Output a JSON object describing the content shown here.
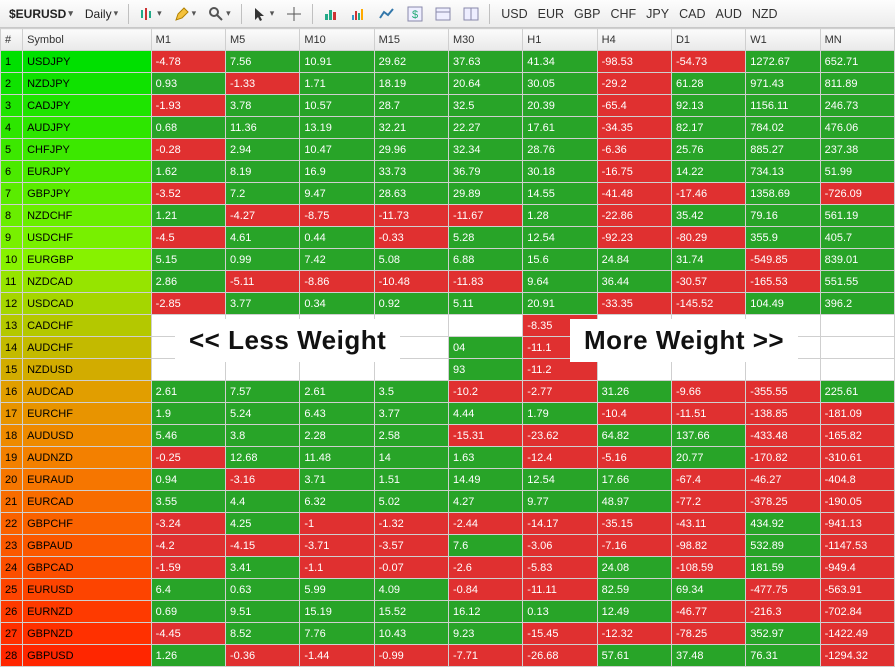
{
  "toolbar": {
    "symbol": "$EURUSD",
    "timeframe": "Daily",
    "currencies": [
      "USD",
      "EUR",
      "GBP",
      "CHF",
      "JPY",
      "CAD",
      "AUD",
      "NZD"
    ]
  },
  "overlay": {
    "less": "<< Less Weight",
    "more": "More Weight >>"
  },
  "headers": [
    "#",
    "Symbol",
    "M1",
    "M5",
    "M10",
    "M15",
    "M30",
    "H1",
    "H4",
    "D1",
    "W1",
    "MN"
  ],
  "idx_gradient": [
    "#00e000",
    "#0fe200",
    "#1ee400",
    "#2de600",
    "#3ce800",
    "#4bea00",
    "#5aec00",
    "#69ee00",
    "#78f000",
    "#87f200",
    "#96e400",
    "#a5d600",
    "#b4c800",
    "#c3ba00",
    "#d2ac00",
    "#e19e00",
    "#e89400",
    "#ee8a00",
    "#f38000",
    "#f67600",
    "#f86c00",
    "#fa6200",
    "#fb5800",
    "#fc4e00",
    "#fd4400",
    "#fe3a00",
    "#ff3000",
    "#ff2600"
  ],
  "colors": {
    "pos": "#28a428",
    "neg": "#e03030"
  },
  "rows": [
    {
      "n": 1,
      "s": "USDJPY",
      "v": [
        "-4.78",
        "7.56",
        "10.91",
        "29.62",
        "37.63",
        "41.34",
        "-98.53",
        "-54.73",
        "1272.67",
        "652.71"
      ]
    },
    {
      "n": 2,
      "s": "NZDJPY",
      "v": [
        "0.93",
        "-1.33",
        "1.71",
        "18.19",
        "20.64",
        "30.05",
        "-29.2",
        "61.28",
        "971.43",
        "811.89"
      ]
    },
    {
      "n": 3,
      "s": "CADJPY",
      "v": [
        "-1.93",
        "3.78",
        "10.57",
        "28.7",
        "32.5",
        "20.39",
        "-65.4",
        "92.13",
        "1156.11",
        "246.73"
      ]
    },
    {
      "n": 4,
      "s": "AUDJPY",
      "v": [
        "0.68",
        "11.36",
        "13.19",
        "32.21",
        "22.27",
        "17.61",
        "-34.35",
        "82.17",
        "784.02",
        "476.06"
      ]
    },
    {
      "n": 5,
      "s": "CHFJPY",
      "v": [
        "-0.28",
        "2.94",
        "10.47",
        "29.96",
        "32.34",
        "28.76",
        "-6.36",
        "25.76",
        "885.27",
        "237.38"
      ]
    },
    {
      "n": 6,
      "s": "EURJPY",
      "v": [
        "1.62",
        "8.19",
        "16.9",
        "33.73",
        "36.79",
        "30.18",
        "-16.75",
        "14.22",
        "734.13",
        "51.99"
      ]
    },
    {
      "n": 7,
      "s": "GBPJPY",
      "v": [
        "-3.52",
        "7.2",
        "9.47",
        "28.63",
        "29.89",
        "14.55",
        "-41.48",
        "-17.46",
        "1358.69",
        "-726.09"
      ]
    },
    {
      "n": 8,
      "s": "NZDCHF",
      "v": [
        "1.21",
        "-4.27",
        "-8.75",
        "-11.73",
        "-11.67",
        "1.28",
        "-22.86",
        "35.42",
        "79.16",
        "561.19"
      ]
    },
    {
      "n": 9,
      "s": "USDCHF",
      "v": [
        "-4.5",
        "4.61",
        "0.44",
        "-0.33",
        "5.28",
        "12.54",
        "-92.23",
        "-80.29",
        "355.9",
        "405.7"
      ]
    },
    {
      "n": 10,
      "s": "EURGBP",
      "v": [
        "5.15",
        "0.99",
        "7.42",
        "5.08",
        "6.88",
        "15.6",
        "24.84",
        "31.74",
        "-549.85",
        "839.01"
      ]
    },
    {
      "n": 11,
      "s": "NZDCAD",
      "v": [
        "2.86",
        "-5.11",
        "-8.86",
        "-10.48",
        "-11.83",
        "9.64",
        "36.44",
        "-30.57",
        "-165.53",
        "551.55"
      ]
    },
    {
      "n": 12,
      "s": "USDCAD",
      "v": [
        "-2.85",
        "3.77",
        "0.34",
        "0.92",
        "5.11",
        "20.91",
        "-33.35",
        "-145.52",
        "104.49",
        "396.2"
      ]
    },
    {
      "n": 13,
      "s": "CADCHF",
      "v": [
        "",
        "",
        "",
        "",
        "",
        "-8.35",
        "",
        "",
        "",
        ""
      ]
    },
    {
      "n": 14,
      "s": "AUDCHF",
      "v": [
        "",
        "",
        "",
        "",
        "04",
        "-11.1",
        "",
        "",
        "",
        ""
      ]
    },
    {
      "n": 15,
      "s": "NZDUSD",
      "v": [
        "",
        "",
        "",
        "",
        "93",
        "-11.2",
        "",
        "",
        "",
        ""
      ]
    },
    {
      "n": 16,
      "s": "AUDCAD",
      "v": [
        "2.61",
        "7.57",
        "2.61",
        "3.5",
        "-10.2",
        "-2.77",
        "31.26",
        "-9.66",
        "-355.55",
        "225.61"
      ]
    },
    {
      "n": 17,
      "s": "EURCHF",
      "v": [
        "1.9",
        "5.24",
        "6.43",
        "3.77",
        "4.44",
        "1.79",
        "-10.4",
        "-11.51",
        "-138.85",
        "-181.09"
      ]
    },
    {
      "n": 18,
      "s": "AUDUSD",
      "v": [
        "5.46",
        "3.8",
        "2.28",
        "2.58",
        "-15.31",
        "-23.62",
        "64.82",
        "137.66",
        "-433.48",
        "-165.82"
      ]
    },
    {
      "n": 19,
      "s": "AUDNZD",
      "v": [
        "-0.25",
        "12.68",
        "11.48",
        "14",
        "1.63",
        "-12.4",
        "-5.16",
        "20.77",
        "-170.82",
        "-310.61"
      ]
    },
    {
      "n": 20,
      "s": "EURAUD",
      "v": [
        "0.94",
        "-3.16",
        "3.71",
        "1.51",
        "14.49",
        "12.54",
        "17.66",
        "-67.4",
        "-46.27",
        "-404.8"
      ]
    },
    {
      "n": 21,
      "s": "EURCAD",
      "v": [
        "3.55",
        "4.4",
        "6.32",
        "5.02",
        "4.27",
        "9.77",
        "48.97",
        "-77.2",
        "-378.25",
        "-190.05"
      ]
    },
    {
      "n": 22,
      "s": "GBPCHF",
      "v": [
        "-3.24",
        "4.25",
        "-1",
        "-1.32",
        "-2.44",
        "-14.17",
        "-35.15",
        "-43.11",
        "434.92",
        "-941.13"
      ]
    },
    {
      "n": 23,
      "s": "GBPAUD",
      "v": [
        "-4.2",
        "-4.15",
        "-3.71",
        "-3.57",
        "7.6",
        "-3.06",
        "-7.16",
        "-98.82",
        "532.89",
        "-1147.53"
      ]
    },
    {
      "n": 24,
      "s": "GBPCAD",
      "v": [
        "-1.59",
        "3.41",
        "-1.1",
        "-0.07",
        "-2.6",
        "-5.83",
        "24.08",
        "-108.59",
        "181.59",
        "-949.4"
      ]
    },
    {
      "n": 25,
      "s": "EURUSD",
      "v": [
        "6.4",
        "0.63",
        "5.99",
        "4.09",
        "-0.84",
        "-11.11",
        "82.59",
        "69.34",
        "-477.75",
        "-563.91"
      ]
    },
    {
      "n": 26,
      "s": "EURNZD",
      "v": [
        "0.69",
        "9.51",
        "15.19",
        "15.52",
        "16.12",
        "0.13",
        "12.49",
        "-46.77",
        "-216.3",
        "-702.84"
      ]
    },
    {
      "n": 27,
      "s": "GBPNZD",
      "v": [
        "-4.45",
        "8.52",
        "7.76",
        "10.43",
        "9.23",
        "-15.45",
        "-12.32",
        "-78.25",
        "352.97",
        "-1422.49"
      ]
    },
    {
      "n": 28,
      "s": "GBPUSD",
      "v": [
        "1.26",
        "-0.36",
        "-1.44",
        "-0.99",
        "-7.71",
        "-26.68",
        "57.61",
        "37.48",
        "76.31",
        "-1294.32"
      ]
    }
  ]
}
